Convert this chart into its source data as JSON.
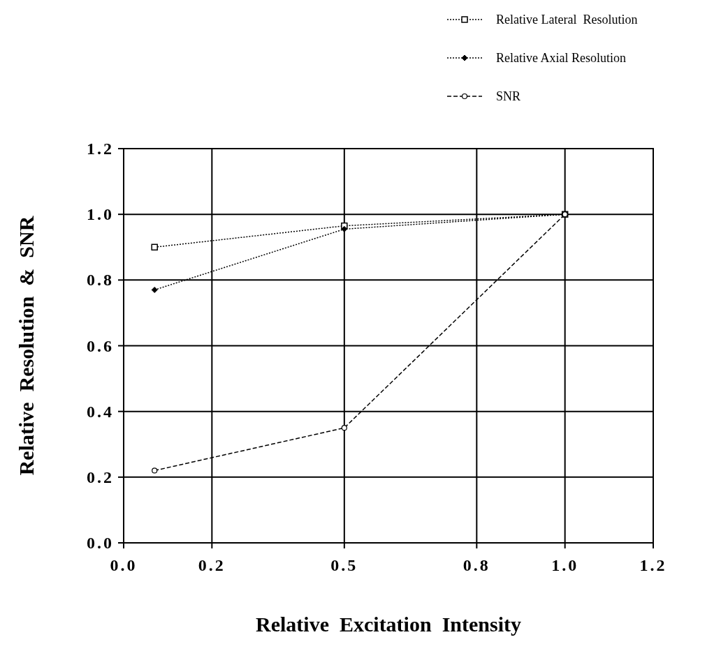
{
  "chart_data": {
    "type": "line",
    "xlabel": "Relative  Excitation  Intensity",
    "ylabel": "Relative  Resolution  &  SNR",
    "x": [
      0.07,
      0.5,
      1.0
    ],
    "series": [
      {
        "name": "Relative Lateral  Resolution",
        "color": "#000000",
        "values": [
          0.9,
          0.965,
          1.0
        ],
        "marker": "square",
        "line_style": "dotted"
      },
      {
        "name": "Relative Axial Resolution",
        "color": "#000000",
        "values": [
          0.77,
          0.955,
          1.0
        ],
        "marker": "diamond",
        "line_style": "dotted"
      },
      {
        "name": "SNR",
        "color": "#000000",
        "values": [
          0.22,
          0.35,
          1.0
        ],
        "marker": "circle",
        "line_style": "dashed"
      }
    ],
    "xlim": [
      0,
      1.2
    ],
    "xticks": [
      {
        "value": 0,
        "label": "0.0"
      },
      0.2,
      0.5,
      0.8,
      {
        "value": 1.0,
        "label": "1.0"
      },
      1.2
    ],
    "ylim": [
      0,
      1.2
    ],
    "yticks": [
      {
        "value": 0,
        "label": "0.0"
      },
      0.2,
      0.4,
      0.6,
      0.8,
      {
        "value": 1.0,
        "label": "1.0"
      },
      1.2
    ],
    "grid": true,
    "legend": "top right"
  }
}
